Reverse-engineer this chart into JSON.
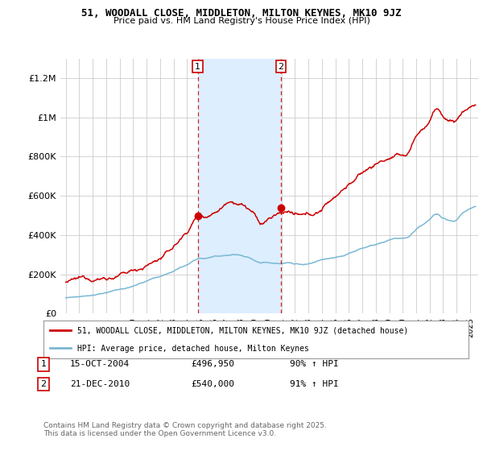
{
  "title": "51, WOODALL CLOSE, MIDDLETON, MILTON KEYNES, MK10 9JZ",
  "subtitle": "Price paid vs. HM Land Registry's House Price Index (HPI)",
  "background_color": "#ffffff",
  "plot_bg_color": "#ffffff",
  "grid_color": "#cccccc",
  "red_line_color": "#cc0000",
  "blue_line_color": "#7ab8d4",
  "shade_color": "#ddeeff",
  "marker1_x": 2004.79,
  "marker2_x": 2010.97,
  "marker1_val_red": 496950,
  "marker2_val_red": 540000,
  "marker1_val_blue": 270000,
  "marker2_val_blue": 255000,
  "legend_line1": "51, WOODALL CLOSE, MIDDLETON, MILTON KEYNES, MK10 9JZ (detached house)",
  "legend_line2": "HPI: Average price, detached house, Milton Keynes",
  "footnote": "Contains HM Land Registry data © Crown copyright and database right 2025.\nThis data is licensed under the Open Government Licence v3.0.",
  "ylim": [
    0,
    1300000
  ],
  "xlim_start": 1994.6,
  "xlim_end": 2025.6,
  "yticks": [
    0,
    200000,
    400000,
    600000,
    800000,
    1000000,
    1200000
  ],
  "ytick_labels": [
    "£0",
    "£200K",
    "£400K",
    "£600K",
    "£800K",
    "£1M",
    "£1.2M"
  ],
  "ann1_date": "15-OCT-2004",
  "ann1_price": "£496,950",
  "ann1_hpi": "90% ↑ HPI",
  "ann2_date": "21-DEC-2010",
  "ann2_price": "£540,000",
  "ann2_hpi": "91% ↑ HPI"
}
